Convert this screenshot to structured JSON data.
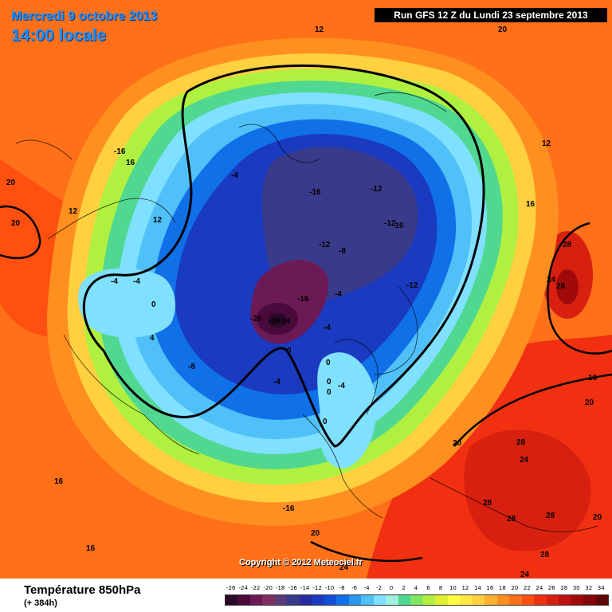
{
  "header": {
    "date": "Mercredi 9 octobre 2013",
    "time": "14:00 locale",
    "run": "Run GFS 12 Z du Lundi 23 septembre 2013"
  },
  "copyright": "Copyright © 2012 Meteociel.fr",
  "footer": {
    "title": "Température 850hPa",
    "subtitle": "(+ 384h)"
  },
  "color_scale": {
    "values": [
      "-26",
      "-24",
      "-22",
      "-20",
      "-18",
      "-16",
      "-14",
      "-12",
      "-10",
      "-8",
      "-6",
      "-4",
      "-2",
      "0",
      "2",
      "4",
      "6",
      "8",
      "10",
      "12",
      "14",
      "16",
      "18",
      "20",
      "22",
      "24",
      "26",
      "28",
      "30",
      "32",
      "34"
    ],
    "colors": [
      "#2a0a2a",
      "#4a0a3c",
      "#6b1a55",
      "#803060",
      "#5a3a78",
      "#3a3a8a",
      "#2a2aa0",
      "#1a3ac0",
      "#1050d8",
      "#1070e8",
      "#2a98f0",
      "#50c0f8",
      "#80e0ff",
      "#a0f0e0",
      "#50d890",
      "#80e860",
      "#b0f040",
      "#e0f030",
      "#ffff40",
      "#ffe840",
      "#ffd040",
      "#ffb030",
      "#ff9020",
      "#ff7018",
      "#ff5010",
      "#f03010",
      "#d82010",
      "#c01010",
      "#a00a0a",
      "#800808",
      "#600606"
    ]
  },
  "map_labels": [
    {
      "text": "12"
    },
    {
      "text": "20"
    },
    {
      "text": "-16"
    },
    {
      "text": "16"
    },
    {
      "text": "20"
    },
    {
      "text": "20"
    },
    {
      "text": "12"
    },
    {
      "text": "-4"
    },
    {
      "text": "12"
    },
    {
      "text": "-16"
    },
    {
      "text": "-12"
    },
    {
      "text": "-12"
    },
    {
      "text": "-16"
    },
    {
      "text": "12"
    },
    {
      "text": "16"
    },
    {
      "text": "28"
    },
    {
      "text": "24"
    },
    {
      "text": "28"
    },
    {
      "text": "-12"
    },
    {
      "text": "-8"
    },
    {
      "text": "-12"
    },
    {
      "text": "-4"
    },
    {
      "text": "-4"
    },
    {
      "text": "-16"
    },
    {
      "text": "0"
    },
    {
      "text": "-4"
    },
    {
      "text": "4"
    },
    {
      "text": "-20"
    },
    {
      "text": "-28"
    },
    {
      "text": "-24"
    },
    {
      "text": "-4"
    },
    {
      "text": "0"
    },
    {
      "text": "-8"
    },
    {
      "text": "-4"
    },
    {
      "text": "0"
    },
    {
      "text": "0"
    },
    {
      "text": "-4"
    },
    {
      "text": "0"
    },
    {
      "text": "20"
    },
    {
      "text": "16"
    },
    {
      "text": "0"
    },
    {
      "text": "20"
    },
    {
      "text": "28"
    },
    {
      "text": "24"
    },
    {
      "text": "28"
    },
    {
      "text": "28"
    },
    {
      "text": "28"
    },
    {
      "text": "20"
    },
    {
      "text": "16"
    },
    {
      "text": "16"
    },
    {
      "text": "-16"
    },
    {
      "text": "20"
    },
    {
      "text": "24"
    },
    {
      "text": "28"
    },
    {
      "text": "24"
    }
  ]
}
